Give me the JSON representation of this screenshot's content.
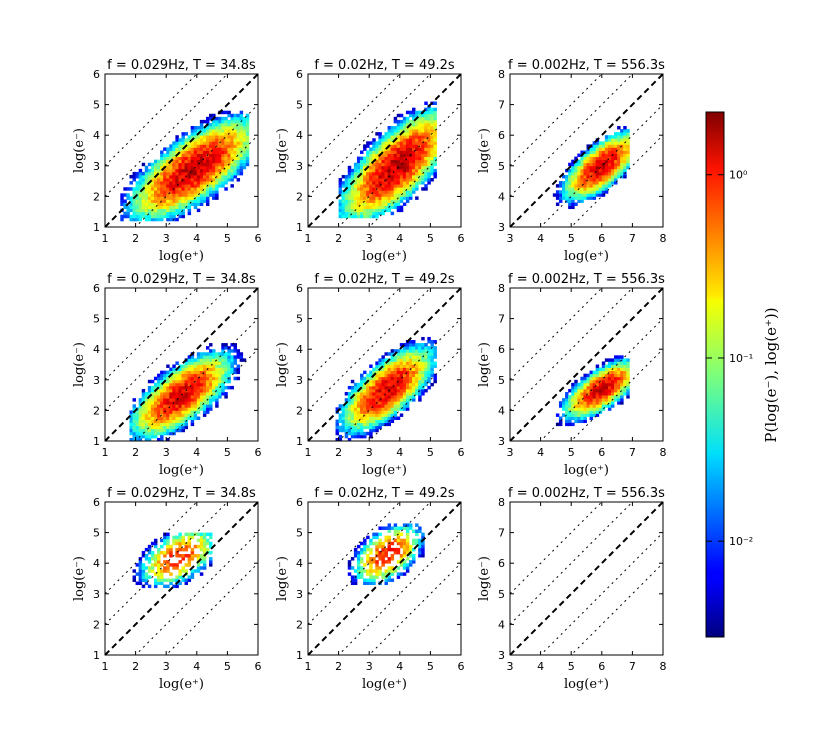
{
  "figure": {
    "colorbar": {
      "label": "P(log(e⁻), log(e⁺))",
      "scale": "log",
      "range": [
        0.003,
        2.2
      ],
      "ticks": [
        {
          "value": 1,
          "label": "10⁰"
        },
        {
          "value": 0.1,
          "label": "10⁻¹"
        },
        {
          "value": 0.01,
          "label": "10⁻²"
        }
      ],
      "colormap": "jet"
    }
  },
  "chart_data": [
    {
      "type": "heatmap",
      "title": "f = 0.029Hz, T = 34.8s",
      "xlabel": "log(e⁺)",
      "ylabel": "log(e⁻)",
      "xlim": [
        1,
        6
      ],
      "ylim": [
        1,
        6
      ],
      "xticks": [
        "1",
        "2",
        "3",
        "4",
        "5",
        "6"
      ],
      "yticks": [
        "1",
        "2",
        "3",
        "4",
        "5",
        "6"
      ],
      "diagonals": [
        -2,
        -1,
        0,
        1,
        2
      ],
      "density": {
        "center": [
          3.9,
          2.9
        ],
        "spread": [
          0.75,
          0.6
        ],
        "corr": 0.72,
        "peak": 1.5,
        "extent_x": [
          1.5,
          5.7
        ],
        "extent_y": [
          1.2,
          4.8
        ]
      }
    },
    {
      "type": "heatmap",
      "title": "f = 0.02Hz, T = 49.2s",
      "xlabel": "log(e⁺)",
      "ylabel": "log(e⁻)",
      "xlim": [
        1,
        6
      ],
      "ylim": [
        1,
        6
      ],
      "xticks": [
        "1",
        "2",
        "3",
        "4",
        "5",
        "6"
      ],
      "yticks": [
        "1",
        "2",
        "3",
        "4",
        "5",
        "6"
      ],
      "diagonals": [
        -2,
        -1,
        0,
        1,
        2
      ],
      "density": {
        "center": [
          3.9,
          3.0
        ],
        "spread": [
          0.65,
          0.65
        ],
        "corr": 0.72,
        "peak": 1.6,
        "extent_x": [
          2.0,
          5.2
        ],
        "extent_y": [
          1.3,
          5.4
        ]
      }
    },
    {
      "type": "heatmap",
      "title": "f = 0.002Hz, T = 556.3s",
      "xlabel": "log(e⁺)",
      "ylabel": "log(e⁻)",
      "xlim": [
        3,
        8
      ],
      "ylim": [
        3,
        8
      ],
      "xticks": [
        "3",
        "4",
        "5",
        "6",
        "7",
        "8"
      ],
      "yticks": [
        "3",
        "4",
        "5",
        "6",
        "7",
        "8"
      ],
      "diagonals": [
        -2,
        -1,
        0,
        1,
        2
      ],
      "density": {
        "center": [
          6.0,
          5.0
        ],
        "spread": [
          0.45,
          0.4
        ],
        "corr": 0.7,
        "peak": 1.4,
        "extent_x": [
          3.3,
          6.9
        ],
        "extent_y": [
          3.0,
          6.4
        ]
      }
    },
    {
      "type": "heatmap",
      "title": "f = 0.029Hz, T = 34.8s",
      "xlabel": "log(e⁺)",
      "ylabel": "log(e⁻)",
      "xlim": [
        1,
        6
      ],
      "ylim": [
        1,
        6
      ],
      "xticks": [
        "1",
        "2",
        "3",
        "4",
        "5",
        "6"
      ],
      "yticks": [
        "1",
        "2",
        "3",
        "4",
        "5",
        "6"
      ],
      "diagonals": [
        -2,
        -1,
        0,
        1,
        2
      ],
      "density": {
        "center": [
          3.5,
          2.5
        ],
        "spread": [
          0.6,
          0.5
        ],
        "corr": 0.7,
        "peak": 1.3,
        "extent_x": [
          1.8,
          5.6
        ],
        "extent_y": [
          1.0,
          4.6
        ]
      }
    },
    {
      "type": "heatmap",
      "title": "f = 0.02Hz, T = 49.2s",
      "xlabel": "log(e⁺)",
      "ylabel": "log(e⁻)",
      "xlim": [
        1,
        6
      ],
      "ylim": [
        1,
        6
      ],
      "xticks": [
        "1",
        "2",
        "3",
        "4",
        "5",
        "6"
      ],
      "yticks": [
        "1",
        "2",
        "3",
        "4",
        "5",
        "6"
      ],
      "diagonals": [
        -2,
        -1,
        0,
        1,
        2
      ],
      "density": {
        "center": [
          3.6,
          2.7
        ],
        "spread": [
          0.55,
          0.5
        ],
        "corr": 0.7,
        "peak": 1.3,
        "extent_x": [
          1.9,
          5.2
        ],
        "extent_y": [
          1.0,
          4.9
        ]
      }
    },
    {
      "type": "heatmap",
      "title": "f = 0.002Hz, T = 556.3s",
      "xlabel": "log(e⁺)",
      "ylabel": "log(e⁻)",
      "xlim": [
        3,
        8
      ],
      "ylim": [
        3,
        8
      ],
      "xticks": [
        "3",
        "4",
        "5",
        "6",
        "7",
        "8"
      ],
      "yticks": [
        "3",
        "4",
        "5",
        "6",
        "7",
        "8"
      ],
      "diagonals": [
        -2,
        -1,
        0,
        1,
        2
      ],
      "density": {
        "center": [
          6.0,
          4.7
        ],
        "spread": [
          0.45,
          0.35
        ],
        "corr": 0.7,
        "peak": 1.3,
        "extent_x": [
          3.2,
          6.9
        ],
        "extent_y": [
          3.0,
          5.9
        ]
      }
    },
    {
      "type": "heatmap",
      "title": "f = 0.029Hz, T = 34.8s",
      "xlabel": "log(e⁺)",
      "ylabel": "log(e⁻)",
      "xlim": [
        1,
        6
      ],
      "ylim": [
        1,
        6
      ],
      "xticks": [
        "1",
        "2",
        "3",
        "4",
        "5",
        "6"
      ],
      "yticks": [
        "1",
        "2",
        "3",
        "4",
        "5",
        "6"
      ],
      "diagonals": [
        -2,
        -1,
        0,
        1,
        2
      ],
      "density": {
        "center": [
          3.4,
          4.2
        ],
        "spread": [
          0.45,
          0.35
        ],
        "corr": 0.5,
        "peak": 0.8,
        "sparse": true,
        "extent_x": [
          1.6,
          4.5
        ],
        "extent_y": [
          3.2,
          5.0
        ]
      }
    },
    {
      "type": "heatmap",
      "title": "f = 0.02Hz, T = 49.2s",
      "xlabel": "log(e⁺)",
      "ylabel": "log(e⁻)",
      "xlim": [
        1,
        6
      ],
      "ylim": [
        1,
        6
      ],
      "xticks": [
        "1",
        "2",
        "3",
        "4",
        "5",
        "6"
      ],
      "yticks": [
        "1",
        "2",
        "3",
        "4",
        "5",
        "6"
      ],
      "diagonals": [
        -2,
        -1,
        0,
        1,
        2
      ],
      "density": {
        "center": [
          3.6,
          4.3
        ],
        "spread": [
          0.4,
          0.35
        ],
        "corr": 0.5,
        "peak": 0.9,
        "sparse": true,
        "extent_x": [
          2.1,
          4.8
        ],
        "extent_y": [
          3.3,
          5.3
        ]
      }
    },
    {
      "type": "heatmap",
      "title": "f = 0.002Hz, T = 556.3s",
      "xlabel": "log(e⁺)",
      "ylabel": "log(e⁻)",
      "xlim": [
        3,
        8
      ],
      "ylim": [
        3,
        8
      ],
      "xticks": [
        "3",
        "4",
        "5",
        "6",
        "7",
        "8"
      ],
      "yticks": [
        "3",
        "4",
        "5",
        "6",
        "7",
        "8"
      ],
      "diagonals": [
        -2,
        -1,
        0,
        1,
        2
      ],
      "density": null
    }
  ]
}
